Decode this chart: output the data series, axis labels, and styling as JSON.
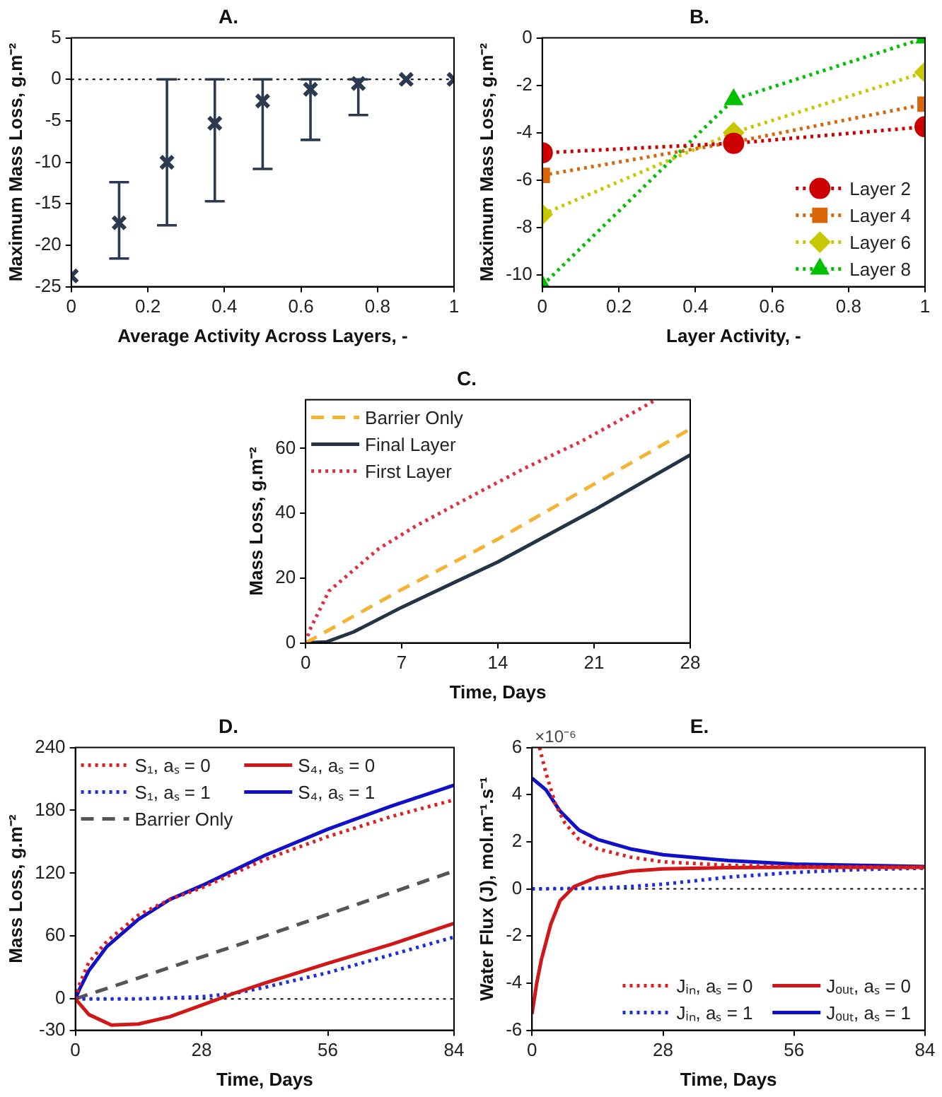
{
  "chart_data": [
    {
      "type": "scatter",
      "title": "A.",
      "xlabel": "Average Activity Across Layers, -",
      "ylabel": "Maximum Mass Loss, g.m⁻²",
      "x": [
        0,
        0.125,
        0.25,
        0.375,
        0.5,
        0.625,
        0.75,
        0.875,
        1
      ],
      "values": [
        -23.7,
        -17.3,
        -10,
        -5.3,
        -2.6,
        -1.2,
        -0.5,
        0,
        0
      ],
      "errors": [
        null,
        [
          -21.6,
          -12.4
        ],
        [
          -17.6,
          0
        ],
        [
          -14.7,
          0
        ],
        [
          -10.8,
          0
        ],
        [
          -7.3,
          0
        ],
        [
          -4.3,
          0
        ],
        null,
        null
      ],
      "color": "#2b3a4e",
      "marker": "cross",
      "xlim": [
        0,
        1
      ],
      "xticks": [
        0,
        0.2,
        0.4,
        0.6,
        0.8,
        1
      ],
      "ylim": [
        -25,
        5
      ],
      "yticks": [
        -25,
        -20,
        -15,
        -10,
        -5,
        0,
        5
      ],
      "ref_lines": [
        {
          "axis": "y",
          "value": 0,
          "line_style": "dotted",
          "color": "#000000"
        }
      ]
    },
    {
      "type": "line",
      "title": "B.",
      "xlabel": "Layer Activity, -",
      "ylabel": "Maximum Mass Loss, g.m⁻²",
      "line_style": "dotted",
      "legend": "bottom right",
      "xlim": [
        0,
        1
      ],
      "xticks": [
        0,
        0.2,
        0.4,
        0.6,
        0.8,
        1
      ],
      "ylim": [
        -10.5,
        0
      ],
      "yticks": [
        -10,
        -8,
        -6,
        -4,
        -2,
        0
      ],
      "series": [
        {
          "name": "Layer 2",
          "color": "#cc0000",
          "marker": "circle",
          "x": [
            0,
            0.5,
            1
          ],
          "values": [
            -4.85,
            -4.45,
            -3.75
          ]
        },
        {
          "name": "Layer 4",
          "color": "#d9660a",
          "marker": "square",
          "x": [
            0,
            0.5,
            1
          ],
          "values": [
            -5.8,
            -4.4,
            -2.8
          ]
        },
        {
          "name": "Layer 6",
          "color": "#c8c800",
          "marker": "diamond",
          "x": [
            0,
            0.5,
            1
          ],
          "values": [
            -7.45,
            -4.0,
            -1.45
          ]
        },
        {
          "name": "Layer 8",
          "color": "#00c000",
          "marker": "triangle",
          "x": [
            0,
            0.5,
            1
          ],
          "values": [
            -10.45,
            -2.6,
            0
          ]
        }
      ]
    },
    {
      "type": "line",
      "title": "C.",
      "xlabel": "Time, Days",
      "ylabel": "Mass Loss, g.m⁻²",
      "legend": "top left",
      "xlim": [
        0,
        28
      ],
      "xticks": [
        0,
        7,
        14,
        21,
        28
      ],
      "ylim": [
        0,
        75
      ],
      "yticks": [
        0,
        20,
        40,
        60
      ],
      "series": [
        {
          "name": "Barrier Only",
          "color": "#f5b335",
          "line_style": "dashed",
          "x": [
            0,
            7,
            14,
            21,
            28
          ],
          "values": [
            0,
            16.5,
            32,
            49,
            66
          ]
        },
        {
          "name": "Final Layer",
          "color": "#243447",
          "line_style": "solid",
          "x": [
            0,
            1.5,
            3.5,
            7,
            10.5,
            14,
            17.5,
            21,
            24.5,
            28
          ],
          "values": [
            0,
            0.3,
            3.4,
            11,
            18,
            25,
            33,
            41,
            49.5,
            58
          ]
        },
        {
          "name": "First Layer",
          "color": "#e03040",
          "line_style": "dotted",
          "x": [
            0,
            0.3,
            1.7,
            5.3,
            8,
            12.4,
            16,
            20,
            23,
            25.5
          ],
          "values": [
            0,
            4,
            16,
            29,
            36,
            46,
            54,
            62,
            69,
            75
          ]
        }
      ]
    },
    {
      "type": "line",
      "title": "D.",
      "xlabel": "Time, Days",
      "ylabel": "Mass Loss, g.m⁻²",
      "legend": "top left",
      "xlim": [
        0,
        84
      ],
      "xticks": [
        0,
        28,
        56,
        84
      ],
      "ylim": [
        -30,
        240
      ],
      "yticks": [
        -30,
        0,
        60,
        120,
        180,
        240
      ],
      "ref_lines": [
        {
          "axis": "y",
          "value": 0,
          "line_style": "dotted",
          "color": "#000000"
        }
      ],
      "series": [
        {
          "name": "S₁, aₛ = 0",
          "color": "#e02020",
          "line_style": "dotted",
          "x": [
            0,
            1,
            3,
            7,
            14,
            21,
            28,
            42,
            56,
            70,
            84
          ],
          "values": [
            0,
            15,
            35,
            55,
            80,
            95,
            106,
            133,
            155,
            174,
            190
          ]
        },
        {
          "name": "S₄, aₛ = 0",
          "color": "#d01818",
          "line_style": "solid",
          "x": [
            0,
            3,
            8,
            14,
            21,
            28,
            35,
            42,
            56,
            70,
            84
          ],
          "values": [
            0,
            -15,
            -25,
            -24,
            -17,
            -6,
            5,
            15,
            34,
            52,
            72
          ]
        },
        {
          "name": "S₁, aₛ = 1",
          "color": "#1a2ee0",
          "line_style": "dotted",
          "x": [
            0,
            14,
            28,
            35,
            42,
            56,
            70,
            84
          ],
          "values": [
            0,
            0,
            2,
            5,
            11,
            25,
            42,
            59
          ]
        },
        {
          "name": "S₄, aₛ = 1",
          "color": "#1010c8",
          "line_style": "solid",
          "x": [
            0,
            1,
            3,
            7,
            14,
            21,
            28,
            42,
            56,
            70,
            84
          ],
          "values": [
            0,
            10,
            27,
            50,
            76,
            95,
            108,
            137,
            162,
            184,
            204
          ]
        },
        {
          "name": "Barrier Only",
          "color": "#555555",
          "line_style": "dashed",
          "x": [
            0,
            21,
            42,
            63,
            84
          ],
          "values": [
            0,
            30,
            60,
            91,
            122
          ]
        }
      ]
    },
    {
      "type": "line",
      "title": "E.",
      "xlabel": "Time, Days",
      "ylabel": "Water Flux (J), mol.m⁻¹.s⁻¹",
      "legend": "bottom right",
      "annotations": [
        "×10⁻⁶"
      ],
      "xlim": [
        0,
        84
      ],
      "xticks": [
        0,
        28,
        56,
        84
      ],
      "ylim": [
        -6,
        6
      ],
      "yticks": [
        -6,
        -4,
        -2,
        0,
        2,
        4,
        6
      ],
      "ref_lines": [
        {
          "axis": "y",
          "value": 0,
          "line_style": "dotted",
          "color": "#000000"
        }
      ],
      "series": [
        {
          "name": "Jᵢₙ, aₛ = 0",
          "color": "#e02020",
          "line_style": "dotted",
          "x": [
            1.6,
            3,
            5,
            7,
            10,
            14,
            21,
            28,
            42,
            56,
            84
          ],
          "values": [
            6,
            4.9,
            3.6,
            2.8,
            2.1,
            1.7,
            1.35,
            1.15,
            1.0,
            0.95,
            0.9
          ]
        },
        {
          "name": "Jₒᵤₜ, aₛ = 0",
          "color": "#d01818",
          "line_style": "solid",
          "x": [
            0,
            1,
            2,
            4,
            6,
            9,
            14,
            21,
            28,
            42,
            56,
            84
          ],
          "values": [
            -5.3,
            -4,
            -3,
            -1.5,
            -0.5,
            0.1,
            0.5,
            0.75,
            0.85,
            0.9,
            0.92,
            0.92
          ]
        },
        {
          "name": "Jᵢₙ, aₛ = 1",
          "color": "#1a2ee0",
          "line_style": "dotted",
          "x": [
            0,
            14,
            21,
            28,
            35,
            42,
            56,
            70,
            84
          ],
          "values": [
            0,
            0.03,
            0.1,
            0.2,
            0.35,
            0.5,
            0.7,
            0.82,
            0.88
          ]
        },
        {
          "name": "Jₒᵤₜ, aₛ = 1",
          "color": "#1010c8",
          "line_style": "solid",
          "x": [
            0,
            3,
            6,
            10,
            14,
            21,
            28,
            42,
            56,
            84
          ],
          "values": [
            4.7,
            4.2,
            3.3,
            2.5,
            2.1,
            1.7,
            1.45,
            1.2,
            1.05,
            0.95
          ]
        }
      ]
    }
  ]
}
